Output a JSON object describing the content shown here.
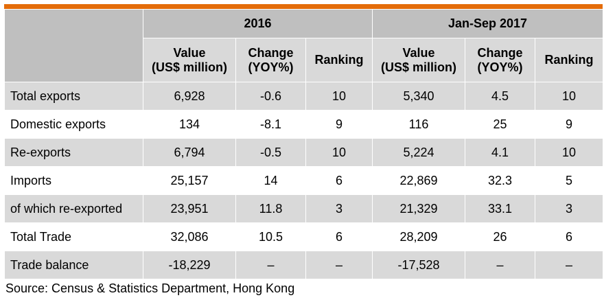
{
  "table": {
    "periods": [
      "2016",
      "Jan-Sep 2017"
    ],
    "columns": [
      {
        "line1": "Value",
        "line2": "(US$ million)"
      },
      {
        "line1": "Change",
        "line2": "(YOY%)"
      },
      {
        "line1": "Ranking",
        "line2": ""
      }
    ],
    "rows": [
      {
        "label": "Total exports",
        "cells": [
          "6,928",
          "-0.6",
          "10",
          "5,340",
          "4.5",
          "10"
        ]
      },
      {
        "label": "Domestic exports",
        "cells": [
          "134",
          "-8.1",
          "9",
          "116",
          "25",
          "9"
        ]
      },
      {
        "label": "Re-exports",
        "cells": [
          "6,794",
          "-0.5",
          "10",
          "5,224",
          "4.1",
          "10"
        ]
      },
      {
        "label": "Imports",
        "cells": [
          "25,157",
          "14",
          "6",
          "22,869",
          "32.3",
          "5"
        ]
      },
      {
        "label": "of which re-exported",
        "cells": [
          "23,951",
          "11.8",
          "3",
          "21,329",
          "33.1",
          "3"
        ]
      },
      {
        "label": "Total Trade",
        "cells": [
          "32,086",
          "10.5",
          "6",
          "28,209",
          "26",
          "6"
        ]
      },
      {
        "label": "Trade balance",
        "cells": [
          "-18,229",
          "–",
          "–",
          "-17,528",
          "–",
          "–"
        ]
      }
    ]
  },
  "source": "Source: Census & Statistics Department, Hong Kong",
  "colors": {
    "accent_bar": "#E46C0A",
    "header_dark": "#BFBFBF",
    "header_light": "#D9D9D9"
  }
}
